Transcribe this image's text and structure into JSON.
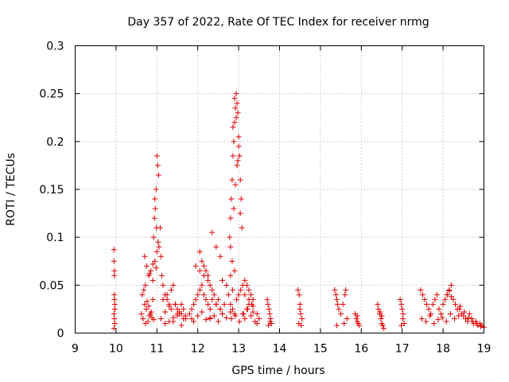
{
  "chart_data": {
    "type": "scatter",
    "title": "Day 357 of 2022, Rate Of TEC Index for receiver nrmg",
    "xlabel": "GPS time / hours",
    "ylabel": "ROTI / TECUs",
    "xlim": [
      9,
      19
    ],
    "ylim": [
      0,
      0.3
    ],
    "xticks": [
      "9",
      "10",
      "11",
      "12",
      "13",
      "14",
      "15",
      "16",
      "17",
      "18",
      "19"
    ],
    "yticks": [
      "0",
      "0.05",
      "0.1",
      "0.15",
      "0.2",
      "0.25",
      "0.3"
    ],
    "grid": true,
    "marker": "+",
    "series": [
      {
        "name": "ROTI",
        "color": "#e00000",
        "x": [
          9.95,
          9.95,
          9.96,
          9.96,
          9.97,
          9.95,
          9.96,
          9.97,
          9.95,
          9.96,
          9.97,
          9.96,
          10.62,
          10.66,
          10.7,
          10.74,
          10.78,
          10.82,
          10.86,
          10.9,
          10.64,
          10.72,
          10.8,
          10.88,
          10.68,
          10.76,
          10.84,
          10.92,
          10.7,
          10.75,
          10.8,
          10.85,
          10.9,
          10.95,
          11.0,
          10.72,
          10.82,
          10.9,
          10.98,
          10.92,
          10.94,
          10.96,
          10.98,
          11.0,
          11.02,
          11.04,
          10.95,
          10.99,
          11.03,
          11.05,
          11.08,
          11.1,
          11.12,
          11.15,
          11.2,
          11.25,
          11.3,
          11.35,
          11.4,
          11.45,
          11.5,
          11.55,
          11.6,
          11.65,
          11.7,
          11.1,
          11.2,
          11.3,
          11.4,
          11.5,
          11.6,
          11.7,
          11.15,
          11.25,
          11.35,
          11.45,
          11.55,
          11.65,
          11.2,
          11.3,
          11.4,
          11.5,
          11.6,
          11.8,
          11.85,
          11.9,
          11.95,
          12.0,
          12.05,
          12.1,
          12.15,
          12.2,
          12.25,
          12.3,
          11.85,
          11.9,
          12.0,
          12.1,
          12.2,
          12.3,
          11.95,
          12.05,
          12.15,
          12.25,
          12.05,
          12.1,
          12.15,
          12.2,
          12.25,
          12.3,
          12.35,
          12.4,
          12.45,
          12.5,
          12.55,
          12.6,
          12.35,
          12.45,
          12.55,
          12.3,
          12.4,
          12.5,
          12.6,
          12.7,
          12.8,
          12.35,
          12.45,
          12.55,
          12.65,
          12.75,
          12.85,
          12.6,
          12.7,
          12.8,
          12.9,
          12.78,
          12.8,
          12.82,
          12.84,
          12.86,
          12.88,
          12.9,
          12.92,
          12.94,
          12.96,
          12.98,
          13.0,
          13.02,
          13.04,
          13.06,
          13.08,
          12.8,
          12.84,
          12.88,
          12.92,
          12.96,
          13.0,
          13.04,
          12.86,
          12.9,
          12.94,
          12.98,
          12.8,
          12.85,
          12.9,
          12.95,
          13.0,
          13.05,
          13.1,
          13.15,
          13.2,
          13.25,
          13.3,
          13.35,
          12.82,
          12.92,
          13.02,
          13.12,
          13.22,
          13.32,
          13.1,
          13.15,
          13.2,
          13.25,
          13.3,
          13.35,
          13.4,
          13.45,
          13.5,
          13.15,
          13.25,
          13.35,
          13.45,
          13.7,
          13.72,
          13.74,
          13.76,
          13.78,
          13.8,
          13.73,
          13.77,
          14.45,
          14.48,
          14.5,
          14.52,
          14.55,
          14.47,
          14.53,
          14.5,
          15.35,
          15.38,
          15.4,
          15.42,
          15.45,
          15.5,
          15.55,
          15.6,
          15.62,
          15.65,
          15.58,
          15.4,
          15.85,
          15.88,
          15.9,
          15.92,
          15.95,
          15.9,
          16.4,
          16.42,
          16.45,
          16.48,
          16.5,
          16.52,
          16.55,
          16.46,
          16.5,
          16.95,
          16.98,
          17.0,
          17.02,
          17.05,
          16.98,
          17.02,
          17.45,
          17.5,
          17.55,
          17.6,
          17.65,
          17.7,
          17.75,
          17.8,
          17.85,
          17.9,
          17.95,
          18.0,
          18.05,
          18.1,
          18.15,
          18.2,
          18.25,
          18.3,
          18.35,
          17.48,
          17.58,
          17.68,
          17.78,
          17.88,
          17.98,
          18.08,
          18.18,
          18.28,
          18.38,
          18.4,
          18.45,
          18.5,
          18.55,
          18.6,
          18.65,
          18.7,
          18.75,
          18.8,
          18.85,
          18.9,
          18.95,
          19.0,
          18.42,
          18.52,
          18.62,
          18.72,
          18.82,
          18.92,
          18.15,
          18.2,
          18.1
        ],
        "y": [
          0.087,
          0.075,
          0.065,
          0.04,
          0.03,
          0.02,
          0.015,
          0.01,
          0.005,
          0.035,
          0.025,
          0.06,
          0.02,
          0.015,
          0.03,
          0.025,
          0.012,
          0.018,
          0.022,
          0.035,
          0.04,
          0.01,
          0.028,
          0.016,
          0.045,
          0.033,
          0.02,
          0.014,
          0.08,
          0.07,
          0.06,
          0.065,
          0.055,
          0.075,
          0.085,
          0.05,
          0.062,
          0.072,
          0.068,
          0.1,
          0.12,
          0.13,
          0.15,
          0.185,
          0.175,
          0.165,
          0.14,
          0.11,
          0.095,
          0.09,
          0.11,
          0.08,
          0.06,
          0.05,
          0.04,
          0.035,
          0.03,
          0.045,
          0.05,
          0.03,
          0.025,
          0.02,
          0.03,
          0.025,
          0.018,
          0.015,
          0.022,
          0.028,
          0.012,
          0.018,
          0.02,
          0.015,
          0.035,
          0.04,
          0.025,
          0.03,
          0.022,
          0.015,
          0.01,
          0.012,
          0.016,
          0.02,
          0.008,
          0.02,
          0.025,
          0.03,
          0.035,
          0.04,
          0.045,
          0.05,
          0.04,
          0.035,
          0.03,
          0.025,
          0.015,
          0.012,
          0.018,
          0.022,
          0.014,
          0.016,
          0.07,
          0.065,
          0.06,
          0.055,
          0.085,
          0.075,
          0.07,
          0.065,
          0.06,
          0.05,
          0.045,
          0.04,
          0.03,
          0.035,
          0.025,
          0.02,
          0.105,
          0.09,
          0.08,
          0.015,
          0.018,
          0.012,
          0.02,
          0.016,
          0.022,
          0.035,
          0.03,
          0.025,
          0.03,
          0.04,
          0.045,
          0.055,
          0.05,
          0.06,
          0.065,
          0.1,
          0.12,
          0.14,
          0.16,
          0.185,
          0.2,
          0.22,
          0.235,
          0.25,
          0.24,
          0.23,
          0.205,
          0.185,
          0.16,
          0.14,
          0.11,
          0.09,
          0.075,
          0.13,
          0.155,
          0.175,
          0.195,
          0.125,
          0.215,
          0.245,
          0.225,
          0.18,
          0.03,
          0.025,
          0.02,
          0.035,
          0.04,
          0.045,
          0.05,
          0.055,
          0.05,
          0.045,
          0.04,
          0.035,
          0.015,
          0.018,
          0.012,
          0.02,
          0.025,
          0.03,
          0.02,
          0.015,
          0.025,
          0.03,
          0.018,
          0.022,
          0.012,
          0.01,
          0.015,
          0.04,
          0.035,
          0.028,
          0.02,
          0.035,
          0.03,
          0.025,
          0.02,
          0.015,
          0.01,
          0.008,
          0.012,
          0.045,
          0.04,
          0.03,
          0.02,
          0.015,
          0.01,
          0.008,
          0.025,
          0.045,
          0.04,
          0.035,
          0.03,
          0.025,
          0.02,
          0.03,
          0.04,
          0.045,
          0.015,
          0.01,
          0.008,
          0.02,
          0.015,
          0.012,
          0.01,
          0.008,
          0.018,
          0.03,
          0.025,
          0.02,
          0.015,
          0.01,
          0.008,
          0.005,
          0.022,
          0.018,
          0.035,
          0.03,
          0.025,
          0.015,
          0.01,
          0.008,
          0.02,
          0.045,
          0.04,
          0.035,
          0.03,
          0.025,
          0.02,
          0.03,
          0.035,
          0.04,
          0.025,
          0.02,
          0.03,
          0.035,
          0.04,
          0.045,
          0.05,
          0.035,
          0.03,
          0.025,
          0.015,
          0.012,
          0.018,
          0.01,
          0.014,
          0.016,
          0.012,
          0.02,
          0.015,
          0.018,
          0.025,
          0.02,
          0.018,
          0.015,
          0.012,
          0.02,
          0.015,
          0.01,
          0.012,
          0.008,
          0.01,
          0.008,
          0.006,
          0.028,
          0.022,
          0.016,
          0.012,
          0.01,
          0.007,
          0.044,
          0.038,
          0.04
        ]
      }
    ]
  }
}
